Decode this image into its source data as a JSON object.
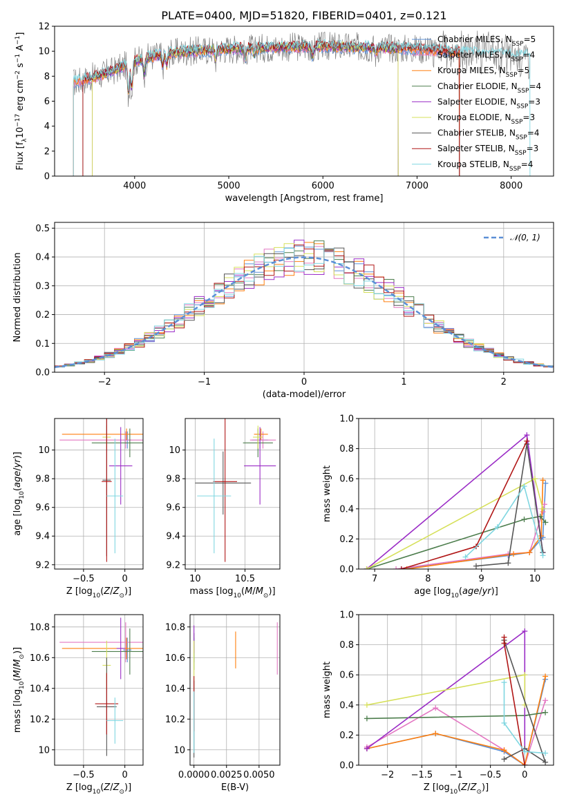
{
  "colors": {
    "cmiles": "#5b8fd6",
    "smiles": "#e377c2",
    "kmiles": "#ff7f0e",
    "celodie": "#4c7d4c",
    "selodie": "#9a2bc6",
    "kelodie": "#d6e05a",
    "cstelib": "#555555",
    "sstelib": "#b01515",
    "kstelib": "#7fd6e0",
    "normal": "#5b8fd6",
    "grid": "#b0b0b0"
  },
  "legend_labels": [
    "Chabrier MILES, N<sub>SSP</sub>=5",
    "Salpeter MILES, N<sub>SSP</sub>=4",
    "Kroupa MILES, N<sub>SSP</sub>=5",
    "Chabrier ELODIE, N<sub>SSP</sub>=4",
    "Salpeter ELODIE, N<sub>SSP</sub>=3",
    "Kroupa ELODIE, N<sub>SSP</sub>=3",
    "Chabrier STELIB, N<sub>SSP</sub>=4",
    "Salpeter STELIB, N<sub>SSP</sub>=3",
    "Kroupa STELIB, N<sub>SSP</sub>=4"
  ],
  "chart_data": [
    {
      "id": "spectrum",
      "type": "line",
      "title": "PLATE=0400, MJD=51820, FIBERID=0401, z=0.121",
      "xlabel": "wavelength [Angstrom, rest frame]",
      "ylabel": "Flux [f<sub>λ</sub>10<sup>−17</sup> erg cm<sup>−2</sup> s<sup>−1</sup> A<sup>−1</sup>]",
      "xlim": [
        3150,
        8450
      ],
      "ylim": [
        0,
        12
      ],
      "xticks": [
        4000,
        5000,
        6000,
        7000,
        8000
      ],
      "yticks": [
        0,
        2,
        4,
        6,
        8,
        10,
        12
      ],
      "grid": false,
      "legend": "right",
      "continuum": [
        [
          3350,
          7.5
        ],
        [
          3600,
          8.0
        ],
        [
          3800,
          8.5
        ],
        [
          4000,
          9.2
        ],
        [
          4300,
          9.8
        ],
        [
          4600,
          10.0
        ],
        [
          5000,
          10.2
        ],
        [
          5500,
          10.3
        ],
        [
          6000,
          10.4
        ],
        [
          6500,
          10.3
        ],
        [
          7000,
          10.2
        ],
        [
          7500,
          9.9
        ],
        [
          8000,
          9.7
        ],
        [
          8200,
          9.6
        ]
      ],
      "model_ranges": [
        [
          3350,
          7450
        ],
        [
          3350,
          7450
        ],
        [
          3350,
          7450
        ],
        [
          3550,
          6800
        ],
        [
          3550,
          6800
        ],
        [
          3550,
          6800
        ],
        [
          3450,
          7450
        ],
        [
          3450,
          7450
        ],
        [
          3350,
          8200
        ]
      ]
    },
    {
      "id": "residuals",
      "type": "histogram",
      "xlabel": "(data-model)/error",
      "ylabel": "Normed distribution",
      "xlim": [
        -2.5,
        2.5
      ],
      "ylim": [
        0,
        0.52
      ],
      "xticks": [
        -2,
        -1,
        0,
        1,
        2
      ],
      "yticks": [
        0.0,
        0.1,
        0.2,
        0.3,
        0.4,
        0.5
      ],
      "grid": true,
      "legend": "top-right",
      "normal_label": "𝒩(0, 1)"
    },
    {
      "id": "age_vs_Z",
      "type": "errorbar",
      "xlabel": "Z [log<tspan baseline-shift='sub' font-size='9'>10</tspan>(<tspan font-style='italic'>Z</tspan>/<tspan font-style='italic'>Z</tspan><tspan baseline-shift='sub' font-size='9'>⊙</tspan>)]",
      "ylabel": "age  [log<tspan baseline-shift='sub' font-size='9'>10</tspan>(<tspan font-style='italic'>age</tspan>/<tspan font-style='italic'>yr</tspan>)]",
      "xlim": [
        -0.85,
        0.22
      ],
      "ylim": [
        9.17,
        10.22
      ],
      "xticks": [
        -0.5,
        0.0
      ],
      "yticks": [
        9.2,
        9.4,
        9.6,
        9.8,
        10.0
      ],
      "grid": true,
      "points": [
        {
          "x": 0.03,
          "y": 10.07,
          "xerr": 0.05,
          "yerr": 0.06
        },
        {
          "x": 0.01,
          "y": 10.07,
          "xerr": 0.8,
          "yerr": 0.06
        },
        {
          "x": 0.02,
          "y": 10.11,
          "xerr": 0.78,
          "yerr": 0.04
        },
        {
          "x": 0.06,
          "y": 10.05,
          "xerr": 0.46,
          "yerr": 0.1
        },
        {
          "x": -0.05,
          "y": 9.89,
          "xerr": 0.14,
          "yerr": 0.27
        },
        {
          "x": -0.22,
          "y": 10.09,
          "xerr": 0.05,
          "yerr": 0.08
        },
        {
          "x": -0.22,
          "y": 9.79,
          "xerr": 0.05,
          "yerr": 0.53
        },
        {
          "x": -0.22,
          "y": 9.78,
          "xerr": 0.06,
          "yerr": 0.56
        },
        {
          "x": -0.12,
          "y": 9.68,
          "xerr": 0.1,
          "yerr": 0.4
        }
      ]
    },
    {
      "id": "age_vs_mass",
      "type": "errorbar",
      "xlabel": "mass [log<tspan baseline-shift='sub' font-size='9'>10</tspan>(<tspan font-style='italic'>M</tspan>/<tspan font-style='italic'>M</tspan><tspan baseline-shift='sub' font-size='9'>⊙</tspan>)]",
      "xlim": [
        9.9,
        10.85
      ],
      "ylim": [
        9.17,
        10.22
      ],
      "xticks": [
        10.0,
        10.5
      ],
      "yticks": [
        9.2,
        9.4,
        9.6,
        9.8,
        10.0
      ],
      "grid": true,
      "points": [
        {
          "x": 10.65,
          "y": 10.07,
          "xerr": 0.08,
          "yerr": 0.06
        },
        {
          "x": 10.68,
          "y": 10.07,
          "xerr": 0.13,
          "yerr": 0.06
        },
        {
          "x": 10.66,
          "y": 10.11,
          "xerr": 0.07,
          "yerr": 0.04
        },
        {
          "x": 10.63,
          "y": 10.05,
          "xerr": 0.15,
          "yerr": 0.1
        },
        {
          "x": 10.65,
          "y": 9.89,
          "xerr": 0.16,
          "yerr": 0.27
        },
        {
          "x": 10.63,
          "y": 10.09,
          "xerr": 0.05,
          "yerr": 0.08
        },
        {
          "x": 10.28,
          "y": 9.77,
          "xerr": 0.28,
          "yerr": 0.22
        },
        {
          "x": 10.3,
          "y": 9.78,
          "xerr": 0.12,
          "yerr": 0.56
        },
        {
          "x": 10.19,
          "y": 9.68,
          "xerr": 0.17,
          "yerr": 0.4
        }
      ]
    },
    {
      "id": "weight_vs_age",
      "type": "line",
      "xlabel": "age  [log<tspan baseline-shift='sub' font-size='9'>10</tspan>(<tspan font-style='italic'>age</tspan>/<tspan font-style='italic'>yr</tspan>)]",
      "ylabel": "mass weight",
      "xlim": [
        6.7,
        10.35
      ],
      "ylim": [
        0,
        1.0
      ],
      "xticks": [
        7,
        8,
        9,
        10
      ],
      "yticks": [
        0.0,
        0.2,
        0.4,
        0.6,
        0.8,
        1.0
      ],
      "grid": true,
      "series": [
        {
          "x": [
            7.5,
            9.5,
            9.9,
            10.15,
            10.2
          ],
          "y": [
            0.0,
            0.09,
            0.11,
            0.21,
            0.57
          ]
        },
        {
          "x": [
            7.4,
            9.5,
            9.9,
            10.15,
            10.18
          ],
          "y": [
            0.0,
            0.1,
            0.11,
            0.38,
            0.43
          ]
        },
        {
          "x": [
            7.6,
            9.6,
            9.9,
            10.12,
            10.15
          ],
          "y": [
            0.0,
            0.1,
            0.11,
            0.22,
            0.59
          ]
        },
        {
          "x": [
            6.85,
            9.8,
            10.1,
            10.2
          ],
          "y": [
            0.0,
            0.33,
            0.35,
            0.31
          ]
        },
        {
          "x": [
            6.85,
            9.85,
            10.15
          ],
          "y": [
            0.0,
            0.89,
            0.11
          ]
        },
        {
          "x": [
            6.85,
            10.0,
            10.15
          ],
          "y": [
            0.0,
            0.6,
            0.4
          ]
        },
        {
          "x": [
            8.9,
            9.5,
            9.85,
            10.15
          ],
          "y": [
            0.02,
            0.04,
            0.83,
            0.11
          ]
        },
        {
          "x": [
            7.5,
            8.9,
            9.85
          ],
          "y": [
            0.0,
            0.15,
            0.85
          ]
        },
        {
          "x": [
            8.7,
            9.3,
            9.8,
            10.15
          ],
          "y": [
            0.08,
            0.28,
            0.55,
            0.09
          ]
        }
      ]
    },
    {
      "id": "mass_vs_Z",
      "type": "errorbar",
      "xlabel": "Z [log<tspan baseline-shift='sub' font-size='9'>10</tspan>(<tspan font-style='italic'>Z</tspan>/<tspan font-style='italic'>Z</tspan><tspan baseline-shift='sub' font-size='9'>⊙</tspan>)]",
      "ylabel": "mass [log<tspan baseline-shift='sub' font-size='9'>10</tspan>(<tspan font-style='italic'>M</tspan>/<tspan font-style='italic'>M</tspan><tspan baseline-shift='sub' font-size='9'>⊙</tspan>)]",
      "xlim": [
        -0.85,
        0.22
      ],
      "ylim": [
        9.9,
        10.88
      ],
      "xticks": [
        -0.5,
        0.0
      ],
      "yticks": [
        10.0,
        10.2,
        10.4,
        10.6,
        10.8
      ],
      "grid": true,
      "points": [
        {
          "x": 0.03,
          "y": 10.65,
          "xerr": 0.05,
          "yerr": 0.08
        },
        {
          "x": 0.01,
          "y": 10.7,
          "xerr": 0.8,
          "yerr": 0.13
        },
        {
          "x": 0.02,
          "y": 10.66,
          "xerr": 0.78,
          "yerr": 0.07
        },
        {
          "x": 0.06,
          "y": 10.64,
          "xerr": 0.46,
          "yerr": 0.15
        },
        {
          "x": -0.05,
          "y": 10.66,
          "xerr": 0.05,
          "yerr": 0.2
        },
        {
          "x": -0.22,
          "y": 10.55,
          "xerr": 0.05,
          "yerr": 0.16
        },
        {
          "x": -0.22,
          "y": 10.28,
          "xerr": 0.12,
          "yerr": 0.32
        },
        {
          "x": -0.22,
          "y": 10.3,
          "xerr": 0.14,
          "yerr": 0.2
        },
        {
          "x": -0.12,
          "y": 10.19,
          "xerr": 0.1,
          "yerr": 0.15
        }
      ]
    },
    {
      "id": "mass_vs_ebv",
      "type": "errorbar",
      "xlabel": "E(B-V)",
      "xlim": [
        -0.0003,
        0.0066
      ],
      "ylim": [
        9.9,
        10.88
      ],
      "xticks": [
        0.0,
        0.0025,
        0.005
      ],
      "xticklabels": [
        "0.0000",
        "0.0025",
        "0.0050"
      ],
      "yticks": [
        10.0,
        10.2,
        10.4,
        10.6,
        10.8
      ],
      "grid": true,
      "points": [
        {
          "x": 0.0,
          "y": 10.65,
          "yerr": 0.08
        },
        {
          "x": 0.0064,
          "y": 10.66,
          "yerr": 0.17
        },
        {
          "x": 0.0032,
          "y": 10.65,
          "yerr": 0.12
        },
        {
          "x": 0.0,
          "y": 10.64,
          "yerr": 0.12
        },
        {
          "x": 0.0,
          "y": 10.72,
          "yerr": 0.09
        },
        {
          "x": 0.0,
          "y": 10.55,
          "yerr": 0.16
        },
        {
          "x": 0.0,
          "y": 10.2,
          "yerr": 0.25
        },
        {
          "x": 0.0,
          "y": 10.3,
          "yerr": 0.18
        },
        {
          "x": 0.0,
          "y": 10.18,
          "yerr": 0.2
        }
      ]
    },
    {
      "id": "weight_vs_Z",
      "type": "line",
      "xlabel": "Z [log<tspan baseline-shift='sub' font-size='9'>10</tspan>(<tspan font-style='italic'>Z</tspan>/<tspan font-style='italic'>Z</tspan><tspan baseline-shift='sub' font-size='9'>⊙</tspan>)]",
      "ylabel": "mass weight",
      "xlim": [
        -2.42,
        0.42
      ],
      "ylim": [
        0,
        1.0
      ],
      "xticks": [
        -2.0,
        -1.5,
        -1.0,
        -0.5,
        0.0
      ],
      "yticks": [
        0.0,
        0.2,
        0.4,
        0.6,
        0.8,
        1.0
      ],
      "grid": true,
      "series": [
        {
          "x": [
            -2.3,
            -1.3,
            -0.3,
            0.0,
            0.3
          ],
          "y": [
            0.11,
            0.21,
            0.09,
            0.0,
            0.57
          ]
        },
        {
          "x": [
            -2.3,
            -1.3,
            -0.3,
            0.0,
            0.3
          ],
          "y": [
            0.12,
            0.38,
            0.1,
            0.0,
            0.43
          ]
        },
        {
          "x": [
            -2.3,
            -1.3,
            -0.3,
            0.0,
            0.3
          ],
          "y": [
            0.11,
            0.21,
            0.1,
            0.0,
            0.59
          ]
        },
        {
          "x": [
            -2.3,
            0.0,
            0.3
          ],
          "y": [
            0.31,
            0.33,
            0.35
          ]
        },
        {
          "x": [
            -2.3,
            0.0,
            0.0
          ],
          "y": [
            0.11,
            0.89,
            0.11
          ]
        },
        {
          "x": [
            -2.3,
            0.0,
            0.0
          ],
          "y": [
            0.4,
            0.6,
            0.4
          ]
        },
        {
          "x": [
            -0.3,
            0.0,
            0.3,
            -0.3
          ],
          "y": [
            0.04,
            0.11,
            0.02,
            0.83
          ]
        },
        {
          "x": [
            -0.3,
            -0.3,
            0.0
          ],
          "y": [
            0.85,
            0.81,
            0.0
          ]
        },
        {
          "x": [
            -0.3,
            -0.3,
            0.0,
            0.3
          ],
          "y": [
            0.55,
            0.28,
            0.09,
            0.08
          ]
        }
      ]
    }
  ]
}
